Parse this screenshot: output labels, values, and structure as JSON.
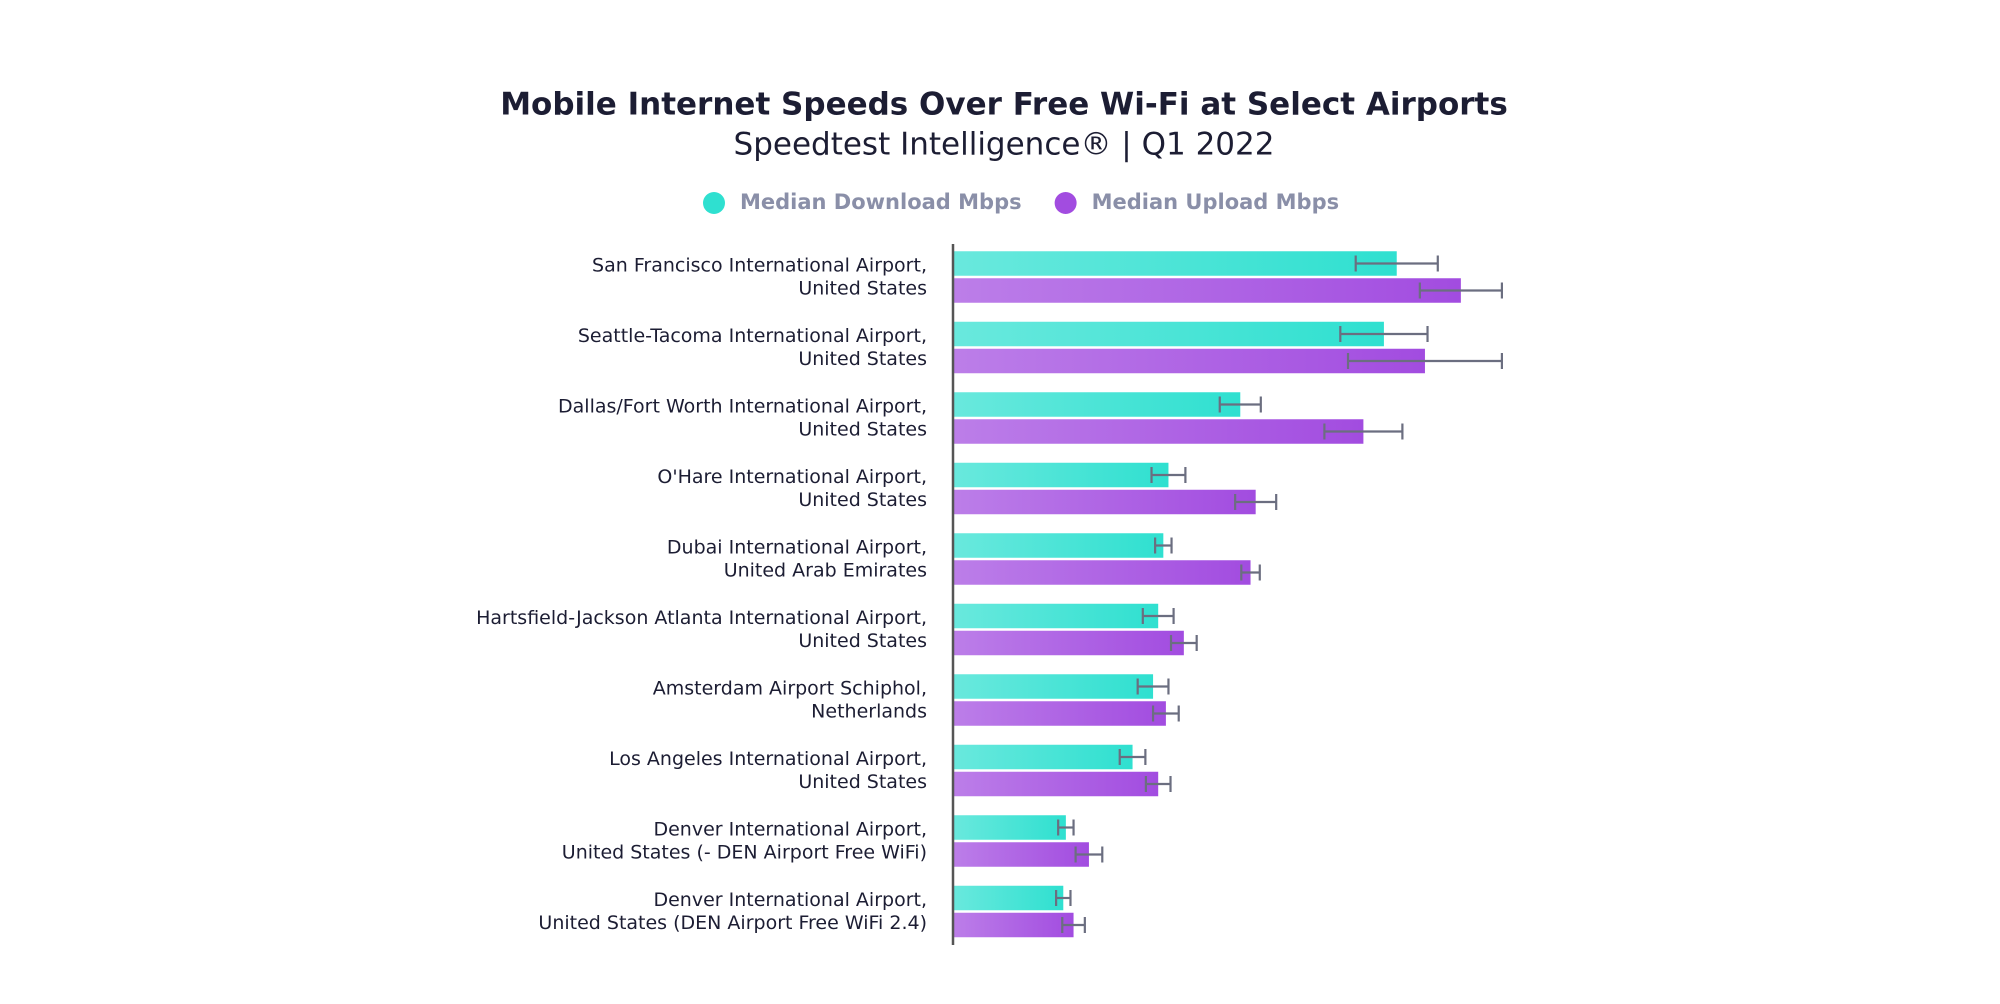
{
  "chart_data": {
    "type": "bar",
    "orientation": "horizontal",
    "title": "Mobile Internet Speeds Over Free Wi-Fi at Select Airports",
    "subtitle": "Speedtest Intelligence® | Q1 2022",
    "categories": [
      [
        "San Francisco International Airport,",
        "United States"
      ],
      [
        "Seattle-Tacoma International Airport,",
        "United States"
      ],
      [
        "Dallas/Fort Worth International Airport,",
        "United States"
      ],
      [
        "O'Hare International Airport,",
        "United States"
      ],
      [
        "Dubai International Airport,",
        "United Arab Emirates"
      ],
      [
        "Hartsfield-Jackson Atlanta International Airport,",
        "United States"
      ],
      [
        "Amsterdam Airport Schiphol,",
        "Netherlands"
      ],
      [
        "Los Angeles International Airport,",
        "United States"
      ],
      [
        "Denver International Airport,",
        "United States (- DEN Airport Free WiFi)"
      ],
      [
        "Denver International Airport,",
        "United States (DEN Airport Free WiFi 2.4)"
      ]
    ],
    "series": [
      {
        "name": "Median Download Mbps",
        "color": "#2fe0d0",
        "values": [
          86.5,
          84,
          56,
          42,
          41,
          40,
          39,
          35,
          22,
          21.5
        ],
        "errors": [
          8,
          8.5,
          4,
          3.3,
          1.6,
          3,
          3,
          2.5,
          1.5,
          1.4
        ]
      },
      {
        "name": "Median Upload Mbps",
        "color": "#a24ce0",
        "values": [
          99,
          92,
          80,
          59,
          58,
          45,
          41.5,
          40,
          26.5,
          23.5
        ],
        "errors": [
          8,
          15,
          7.6,
          4,
          1.8,
          2.5,
          2.5,
          2.4,
          2.6,
          2.2
        ]
      }
    ],
    "xlim": [
      0,
      110
    ]
  }
}
